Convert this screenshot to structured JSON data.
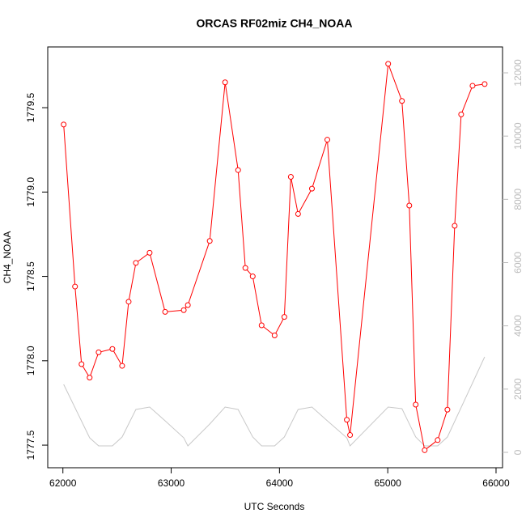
{
  "chart_data": {
    "type": "line",
    "title": "ORCAS RF02miz CH4_NOAA",
    "xlabel": "UTC Seconds",
    "ylabel": "CH4_NOAA",
    "xlim": [
      61860,
      66060
    ],
    "xticks": [
      62000,
      63000,
      64000,
      65000,
      66000
    ],
    "ylim": [
      1777.366,
      1779.86
    ],
    "yticks": [
      1777.5,
      {
        "value": 1778,
        "label": "1778.0"
      },
      1778.5,
      {
        "value": 1779,
        "label": "1779.0"
      },
      1779.5
    ],
    "y2lim": [
      -486,
      12819
    ],
    "y2ticks": [
      0,
      2000,
      4000,
      6000,
      8000,
      10000,
      12000
    ],
    "series": [
      {
        "color": "#ff0000",
        "markers": true,
        "x": [
          62007,
          62112,
          62172,
          62247,
          62330,
          62457,
          62547,
          62607,
          62674,
          62801,
          62944,
          63116,
          63154,
          63356,
          63498,
          63618,
          63685,
          63753,
          63835,
          63955,
          64045,
          64105,
          64172,
          64300,
          64442,
          64622,
          64652,
          65004,
          65131,
          65199,
          65258,
          65341,
          65461,
          65551,
          65618,
          65678,
          65783,
          65895
        ],
        "values": [
          1779.4,
          1778.44,
          1777.98,
          1777.9,
          1778.05,
          1778.07,
          1777.97,
          1778.35,
          1778.58,
          1778.64,
          1778.29,
          1778.3,
          1778.33,
          1778.71,
          1779.65,
          1779.13,
          1778.55,
          1778.5,
          1778.21,
          1778.15,
          1778.26,
          1779.09,
          1778.87,
          1779.02,
          1779.31,
          1777.65,
          1777.56,
          1779.76,
          1779.54,
          1778.92,
          1777.74,
          1777.47,
          1777.53,
          1777.71,
          1778.8,
          1779.46,
          1779.63,
          1779.64
        ]
      },
      {
        "color": "#c8c8c8",
        "axis": "y2",
        "markers": false,
        "x": [
          62007,
          62247,
          62330,
          62457,
          62547,
          62674,
          62801,
          62944,
          63116,
          63154,
          63356,
          63498,
          63618,
          63753,
          63835,
          63955,
          64045,
          64172,
          64300,
          64442,
          64622,
          64652,
          65004,
          65131,
          65258,
          65341,
          65461,
          65551,
          65895
        ],
        "values": [
          2150,
          460,
          205,
          205,
          486,
          1356,
          1433,
          998,
          460,
          205,
          896,
          1433,
          1356,
          486,
          205,
          205,
          486,
          1356,
          1433,
          998,
          460,
          205,
          1433,
          1382,
          486,
          205,
          205,
          486,
          3019
        ]
      }
    ]
  }
}
